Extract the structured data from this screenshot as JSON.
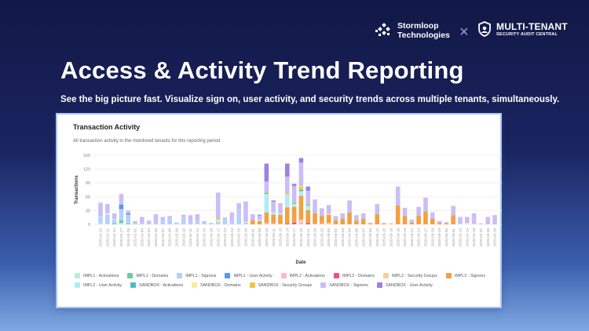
{
  "header": {
    "brand_name_line1": "Stormloop",
    "brand_name_line2": "Technologies",
    "separator": "×",
    "product_name": "MULTI-TENANT",
    "product_tagline": "SECURITY AUDIT CENTRAL"
  },
  "hero": {
    "title": "Access & Activity Trend Reporting",
    "subtitle": "See the big picture fast. Visualize sign on, user activity, and security trends across multiple tenants, simultaneously."
  },
  "card": {
    "title": "Transaction Activity",
    "subtitle": "All transaction activity in the monitored tenants for this reporting period"
  },
  "chart_data": {
    "type": "bar",
    "stacked": true,
    "xlabel": "Date",
    "ylabel": "Transactions",
    "ylim": [
      0,
      150
    ],
    "yticks": [
      0,
      30,
      60,
      90,
      120,
      150
    ],
    "grid": true,
    "legend": "bottom",
    "series": [
      {
        "name": "IMPL1 - Activations",
        "color": "#b8ecd9"
      },
      {
        "name": "IMPL1 - Domains",
        "color": "#6fcaa0"
      },
      {
        "name": "IMPL1 - Signons",
        "color": "#b5d0fb"
      },
      {
        "name": "IMPL1 - User Activity",
        "color": "#5d95ea"
      },
      {
        "name": "IMPL2 - Activations",
        "color": "#f7b8d1"
      },
      {
        "name": "IMPL2 - Domains",
        "color": "#e9548a"
      },
      {
        "name": "IMPL2 - Security Groups",
        "color": "#f7cf9b"
      },
      {
        "name": "IMPL2 - Signons",
        "color": "#f3a041"
      },
      {
        "name": "IMPL2 - User Activity",
        "color": "#b2ebf2"
      },
      {
        "name": "SANDBOX - Activations",
        "color": "#4fb9cc"
      },
      {
        "name": "SANDBOX - Domains",
        "color": "#fde9a0"
      },
      {
        "name": "SANDBOX - Security Groups",
        "color": "#f3c63f"
      },
      {
        "name": "SANDBOX - Signons",
        "color": "#cbbdf6"
      },
      {
        "name": "SANDBOX - User Activity",
        "color": "#9d82e0"
      }
    ],
    "categories": [
      "2025-02-20",
      "2025-02-21",
      "2025-02-22",
      "2025-02-27",
      "2025-02-28",
      "2025-02-01",
      "2025-02-03",
      "2025-02-04",
      "2025-02-05",
      "2025-02-07",
      "2025-02-08",
      "2025-02-09",
      "2025-02-10",
      "2025-02-11",
      "2025-02-12",
      "2025-02-15",
      "2025-02-16",
      "2025-02-17",
      "2025-02-23",
      "2025-02-24",
      "2025-02-25",
      "2025-02-26",
      "2025-03-01",
      "2025-03-08",
      "2025-03-10",
      "2025-03-11",
      "2025-03-13",
      "2025-03-14",
      "2025-03-17",
      "2025-03-20",
      "2025-03-21",
      "2025-03-26",
      "2025-03-25",
      "2025-03-05",
      "2025-03-02",
      "2025-03-03",
      "2025-03-04",
      "2025-03-06",
      "2025-03-07",
      "2025-03-09",
      "2025-03-12",
      "2025-03-15",
      "2025-03-16",
      "2025-03-18",
      "2025-03-19",
      "2025-03-22",
      "2025-03-24",
      "2025-03-27",
      "2025-03-28",
      "2025-03-29",
      "2025-03-30",
      "2025-03-31",
      "2025-02-13",
      "2025-02-14",
      "2025-02-19",
      "2025-02-02",
      "2025-02-06",
      "2025-02-18"
    ],
    "stacks_format": "[series index, value]",
    "stacks": [
      [
        [
          0,
          2
        ],
        [
          2,
          13
        ],
        [
          8,
          2
        ],
        [
          12,
          30
        ]
      ],
      [
        [
          0,
          1
        ],
        [
          2,
          20
        ],
        [
          8,
          1
        ],
        [
          10,
          2
        ],
        [
          12,
          20
        ]
      ],
      [
        [
          1,
          2
        ],
        [
          2,
          8
        ],
        [
          8,
          2
        ],
        [
          12,
          12
        ]
      ],
      [
        [
          0,
          3
        ],
        [
          1,
          6
        ],
        [
          2,
          24
        ],
        [
          3,
          10
        ],
        [
          12,
          23
        ]
      ],
      [
        [
          1,
          2
        ],
        [
          2,
          19
        ],
        [
          3,
          3
        ],
        [
          12,
          6
        ]
      ],
      [
        [
          2,
          4
        ],
        [
          12,
          3
        ]
      ],
      [
        [
          2,
          4
        ],
        [
          12,
          12
        ]
      ],
      [
        [
          2,
          2
        ],
        [
          12,
          6
        ]
      ],
      [
        [
          2,
          5
        ],
        [
          12,
          17
        ]
      ],
      [
        [
          2,
          8
        ],
        [
          12,
          8
        ]
      ],
      [
        [
          2,
          13
        ],
        [
          12,
          5
        ]
      ],
      [
        [
          2,
          3
        ],
        [
          12,
          1
        ]
      ],
      [
        [
          2,
          16
        ],
        [
          12,
          5
        ]
      ],
      [
        [
          2,
          6
        ],
        [
          12,
          14
        ]
      ],
      [
        [
          0,
          1
        ],
        [
          2,
          7
        ],
        [
          12,
          14
        ]
      ],
      [
        [
          2,
          3
        ],
        [
          12,
          4
        ]
      ],
      [
        [
          2,
          2
        ],
        [
          12,
          1
        ]
      ],
      [
        [
          2,
          5
        ],
        [
          8,
          3
        ],
        [
          10,
          2
        ],
        [
          11,
          3
        ],
        [
          12,
          56
        ]
      ],
      [
        [
          2,
          13
        ],
        [
          12,
          2
        ]
      ],
      [
        [
          2,
          7
        ],
        [
          12,
          19
        ]
      ],
      [
        [
          2,
          32
        ],
        [
          12,
          14
        ]
      ],
      [
        [
          2,
          4
        ],
        [
          10,
          2
        ],
        [
          12,
          44
        ]
      ],
      [
        [
          7,
          9
        ],
        [
          12,
          13
        ]
      ],
      [
        [
          7,
          7
        ],
        [
          8,
          3
        ],
        [
          12,
          9
        ],
        [
          13,
          2
        ]
      ],
      [
        [
          4,
          3
        ],
        [
          7,
          23
        ],
        [
          8,
          40
        ],
        [
          9,
          2
        ],
        [
          11,
          2
        ],
        [
          12,
          23
        ],
        [
          13,
          39
        ]
      ],
      [
        [
          4,
          2
        ],
        [
          7,
          19
        ],
        [
          8,
          5
        ],
        [
          12,
          23
        ],
        [
          13,
          3
        ]
      ],
      [
        [
          4,
          1
        ],
        [
          7,
          20
        ],
        [
          8,
          3
        ],
        [
          12,
          22
        ]
      ],
      [
        [
          5,
          2
        ],
        [
          7,
          35
        ],
        [
          8,
          28
        ],
        [
          11,
          3
        ],
        [
          12,
          36
        ],
        [
          13,
          28
        ]
      ],
      [
        [
          5,
          4
        ],
        [
          7,
          34
        ],
        [
          8,
          7
        ],
        [
          9,
          2
        ],
        [
          11,
          2
        ],
        [
          12,
          34
        ],
        [
          13,
          5
        ]
      ],
      [
        [
          4,
          4
        ],
        [
          6,
          6
        ],
        [
          7,
          52
        ],
        [
          8,
          10
        ],
        [
          9,
          3
        ],
        [
          11,
          7
        ],
        [
          10,
          1
        ],
        [
          12,
          51
        ],
        [
          13,
          10
        ]
      ],
      [
        [
          5,
          3
        ],
        [
          7,
          28
        ],
        [
          8,
          10
        ],
        [
          9,
          2
        ],
        [
          11,
          2
        ],
        [
          12,
          28
        ],
        [
          13,
          9
        ]
      ],
      [
        [
          4,
          1
        ],
        [
          7,
          24
        ],
        [
          8,
          2
        ],
        [
          9,
          1
        ],
        [
          12,
          26
        ]
      ],
      [
        [
          4,
          2
        ],
        [
          7,
          16
        ],
        [
          12,
          17
        ]
      ],
      [
        [
          6,
          3
        ],
        [
          7,
          18
        ],
        [
          10,
          2
        ],
        [
          12,
          19
        ]
      ],
      [
        [
          7,
          9
        ],
        [
          12,
          9
        ]
      ],
      [
        [
          7,
          12
        ],
        [
          12,
          12
        ]
      ],
      [
        [
          7,
          26
        ],
        [
          12,
          26
        ]
      ],
      [
        [
          7,
          8
        ],
        [
          12,
          12
        ]
      ],
      [
        [
          7,
          12
        ],
        [
          12,
          12
        ]
      ],
      [
        [
          7,
          2
        ],
        [
          12,
          1
        ]
      ],
      [
        [
          7,
          22
        ],
        [
          12,
          22
        ]
      ],
      [
        [
          7,
          2
        ],
        [
          12,
          1
        ]
      ],
      [
        [
          6,
          1
        ],
        [
          7,
          1
        ]
      ],
      [
        [
          7,
          41
        ],
        [
          12,
          41
        ]
      ],
      [
        [
          7,
          18
        ],
        [
          12,
          18
        ]
      ],
      [
        [
          7,
          4
        ],
        [
          12,
          6
        ]
      ],
      [
        [
          7,
          19
        ],
        [
          12,
          19
        ]
      ],
      [
        [
          7,
          28
        ],
        [
          12,
          30
        ]
      ],
      [
        [
          7,
          12
        ],
        [
          12,
          14
        ]
      ],
      [
        [
          7,
          3
        ],
        [
          12,
          4
        ]
      ],
      [
        [
          7,
          2
        ],
        [
          12,
          3
        ]
      ],
      [
        [
          7,
          20
        ],
        [
          12,
          20
        ]
      ],
      [
        [
          0,
          1
        ],
        [
          12,
          15
        ]
      ],
      [
        [
          10,
          3
        ],
        [
          12,
          13
        ]
      ],
      [
        [
          6,
          1
        ],
        [
          12,
          23
        ]
      ],
      [
        [
          12,
          2
        ]
      ],
      [
        [
          12,
          16
        ]
      ],
      [
        [
          12,
          20
        ]
      ]
    ]
  }
}
